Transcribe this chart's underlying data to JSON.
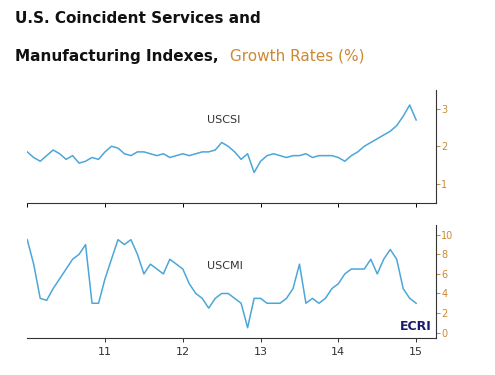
{
  "title_black": "U.S. Coincident Services and\nManufacturing Indexes,",
  "title_orange": " Growth Rates (%)",
  "line_color": "#4da6d8",
  "background_color": "#ffffff",
  "ecri_color": "#1a1a6e",
  "xticks": [
    11,
    12,
    13,
    14,
    15
  ],
  "uscsi_yticks": [
    1,
    2,
    3
  ],
  "uscmi_yticks": [
    0,
    2,
    4,
    6,
    8,
    10
  ],
  "uscsi_ylim": [
    0.5,
    3.5
  ],
  "uscmi_ylim": [
    -0.5,
    11.0
  ],
  "xlim": [
    10.0,
    15.25
  ],
  "uscsi_x": [
    10.0,
    10.083,
    10.167,
    10.25,
    10.333,
    10.417,
    10.5,
    10.583,
    10.667,
    10.75,
    10.833,
    10.917,
    11.0,
    11.083,
    11.167,
    11.25,
    11.333,
    11.417,
    11.5,
    11.583,
    11.667,
    11.75,
    11.833,
    11.917,
    12.0,
    12.083,
    12.167,
    12.25,
    12.333,
    12.417,
    12.5,
    12.583,
    12.667,
    12.75,
    12.833,
    12.917,
    13.0,
    13.083,
    13.167,
    13.25,
    13.333,
    13.417,
    13.5,
    13.583,
    13.667,
    13.75,
    13.833,
    13.917,
    14.0,
    14.083,
    14.167,
    14.25,
    14.333,
    14.417,
    14.5,
    14.583,
    14.667,
    14.75,
    14.833,
    14.917,
    15.0
  ],
  "uscsi_y": [
    1.85,
    1.7,
    1.6,
    1.75,
    1.9,
    1.8,
    1.65,
    1.75,
    1.55,
    1.6,
    1.7,
    1.65,
    1.85,
    2.0,
    1.95,
    1.8,
    1.75,
    1.85,
    1.85,
    1.8,
    1.75,
    1.8,
    1.7,
    1.75,
    1.8,
    1.75,
    1.8,
    1.85,
    1.85,
    1.9,
    2.1,
    2.0,
    1.85,
    1.65,
    1.8,
    1.3,
    1.6,
    1.75,
    1.8,
    1.75,
    1.7,
    1.75,
    1.75,
    1.8,
    1.7,
    1.75,
    1.75,
    1.75,
    1.7,
    1.6,
    1.75,
    1.85,
    2.0,
    2.1,
    2.2,
    2.3,
    2.4,
    2.55,
    2.8,
    3.1,
    2.7
  ],
  "uscmi_x": [
    10.0,
    10.083,
    10.167,
    10.25,
    10.333,
    10.417,
    10.5,
    10.583,
    10.667,
    10.75,
    10.833,
    10.917,
    11.0,
    11.083,
    11.167,
    11.25,
    11.333,
    11.417,
    11.5,
    11.583,
    11.667,
    11.75,
    11.833,
    11.917,
    12.0,
    12.083,
    12.167,
    12.25,
    12.333,
    12.417,
    12.5,
    12.583,
    12.667,
    12.75,
    12.833,
    12.917,
    13.0,
    13.083,
    13.167,
    13.25,
    13.333,
    13.417,
    13.5,
    13.583,
    13.667,
    13.75,
    13.833,
    13.917,
    14.0,
    14.083,
    14.167,
    14.25,
    14.333,
    14.417,
    14.5,
    14.583,
    14.667,
    14.75,
    14.833,
    14.917,
    15.0
  ],
  "uscmi_y": [
    9.5,
    7.0,
    3.5,
    3.3,
    4.5,
    5.5,
    6.5,
    7.5,
    8.0,
    9.0,
    3.0,
    3.0,
    5.5,
    7.5,
    9.5,
    9.0,
    9.5,
    8.0,
    6.0,
    7.0,
    6.5,
    6.0,
    7.5,
    7.0,
    6.5,
    5.0,
    4.0,
    3.5,
    2.5,
    3.5,
    4.0,
    4.0,
    3.5,
    3.0,
    0.5,
    3.5,
    3.5,
    3.0,
    3.0,
    3.0,
    3.5,
    4.5,
    7.0,
    3.0,
    3.5,
    3.0,
    3.5,
    4.5,
    5.0,
    6.0,
    6.5,
    6.5,
    6.5,
    7.5,
    6.0,
    7.5,
    8.5,
    7.5,
    4.5,
    3.5,
    3.0
  ]
}
